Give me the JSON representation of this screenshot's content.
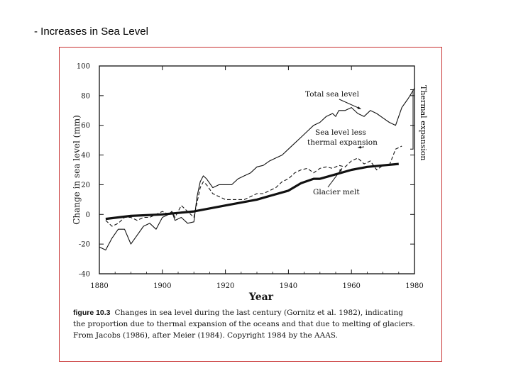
{
  "slide": {
    "title": "- Increases in Sea Level"
  },
  "caption": {
    "figure_label": "figure 10.3",
    "line1": "Changes in sea level during the last century (Gornitz et al. 1982), indicating",
    "line2": "the proportion due to thermal expansion of the oceans and that due to melting of glaciers.",
    "line3": "From Jacobs (1986), after Meier (1984). Copyright 1984 by the AAAS."
  },
  "chart_data": {
    "type": "line",
    "xlabel": "Year",
    "ylabel": "Change in sea level (mm)",
    "xlim": [
      1880,
      1980
    ],
    "ylim": [
      -40,
      100
    ],
    "xticks": [
      1880,
      1900,
      1920,
      1940,
      1960,
      1980
    ],
    "yticks": [
      100,
      80,
      60,
      40,
      20,
      0,
      -20,
      -40
    ],
    "grid": false,
    "annotations": [
      {
        "text": "Total sea level",
        "target_x": 1963,
        "target_y": 71
      },
      {
        "text": "Sea level less",
        "target_x": 1962,
        "target_y": 45
      },
      {
        "text": "thermal expansion",
        "target_x": 1962,
        "target_y": 45
      },
      {
        "text": "Glacier melt",
        "target_x": 1957,
        "target_y": 31
      },
      {
        "text": "Thermal expansion",
        "target_x": 1981,
        "target_y": 60
      }
    ],
    "series": [
      {
        "style": "solid-thin",
        "x": [
          1880,
          1882,
          1884,
          1886,
          1888,
          1890,
          1892,
          1894,
          1896,
          1898,
          1900,
          1902,
          1903,
          1904,
          1906,
          1908,
          1910,
          1911,
          1912,
          1913,
          1914,
          1916,
          1918,
          1920,
          1922,
          1924,
          1926,
          1928,
          1930,
          1932,
          1934,
          1936,
          1938,
          1940,
          1942,
          1944,
          1946,
          1948,
          1950,
          1952,
          1954,
          1955,
          1956,
          1958,
          1960,
          1962,
          1964,
          1966,
          1968,
          1970,
          1972,
          1974,
          1976,
          1978,
          1980
        ],
        "y": [
          -22,
          -24,
          -16,
          -10,
          -10,
          -20,
          -14,
          -8,
          -6,
          -10,
          -2,
          0,
          2,
          -4,
          -2,
          -6,
          -5,
          12,
          22,
          26,
          24,
          18,
          20,
          20,
          20,
          24,
          26,
          28,
          32,
          33,
          36,
          38,
          40,
          44,
          48,
          52,
          56,
          60,
          62,
          66,
          68,
          66,
          70,
          70,
          72,
          68,
          66,
          70,
          68,
          65,
          62,
          60,
          72,
          78,
          85
        ]
      },
      {
        "style": "dashed",
        "x": [
          1882,
          1884,
          1886,
          1888,
          1890,
          1892,
          1894,
          1896,
          1898,
          1900,
          1902,
          1903,
          1904,
          1906,
          1908,
          1910,
          1912,
          1913,
          1914,
          1916,
          1918,
          1920,
          1922,
          1924,
          1926,
          1928,
          1930,
          1932,
          1934,
          1936,
          1938,
          1940,
          1942,
          1944,
          1946,
          1948,
          1950,
          1952,
          1954,
          1956,
          1958,
          1960,
          1962,
          1964,
          1966,
          1968,
          1970,
          1972,
          1974,
          1976
        ],
        "y": [
          -4,
          -8,
          -6,
          -2,
          -2,
          -4,
          -2,
          -2,
          0,
          2,
          0,
          2,
          -2,
          6,
          2,
          -2,
          18,
          22,
          20,
          14,
          12,
          10,
          10,
          10,
          10,
          12,
          14,
          14,
          16,
          18,
          22,
          24,
          28,
          30,
          31,
          28,
          31,
          32,
          31,
          33,
          32,
          36,
          38,
          34,
          36,
          30,
          33,
          33,
          44,
          46
        ]
      },
      {
        "name": "Glacier melt",
        "style": "solid-thick",
        "x": [
          1882,
          1890,
          1900,
          1905,
          1910,
          1920,
          1930,
          1940,
          1944,
          1948,
          1950,
          1955,
          1960,
          1965,
          1970,
          1975
        ],
        "y": [
          -3,
          -1,
          0,
          1,
          2,
          6,
          10,
          16,
          21,
          24,
          24,
          27,
          30,
          32,
          33,
          34
        ]
      }
    ]
  }
}
